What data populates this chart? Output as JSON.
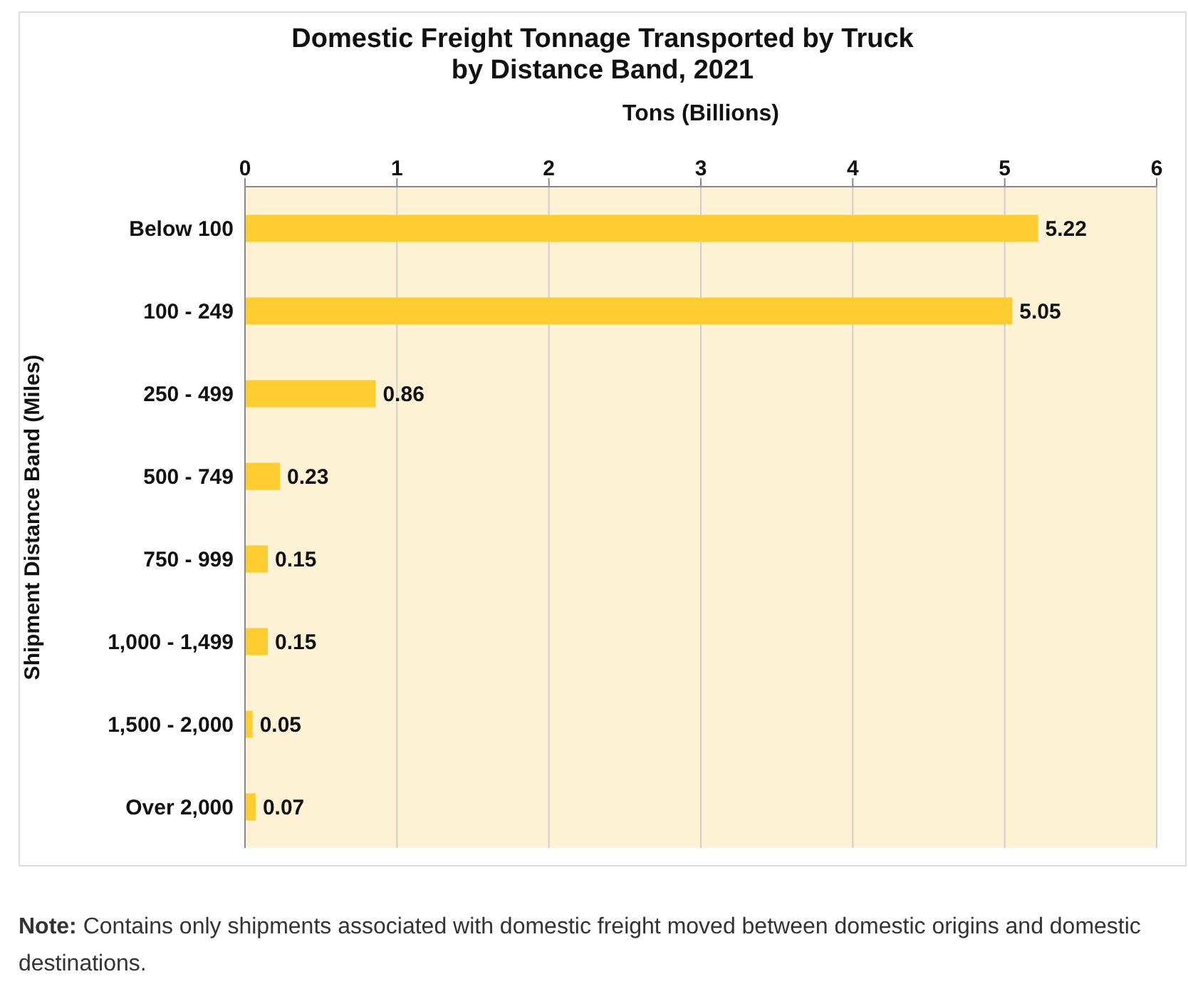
{
  "chart_data": {
    "type": "bar",
    "orientation": "horizontal",
    "title": "Domestic Freight Tonnage Transported by Truck\nby Distance Band, 2021",
    "xlabel": "Tons (Billions)",
    "ylabel": "Shipment Distance Band (Miles)",
    "categories": [
      "Below 100",
      "100 - 249",
      "250 - 499",
      "500 - 749",
      "750 - 999",
      "1,000 - 1,499",
      "1,500 - 2,000",
      "Over 2,000"
    ],
    "values": [
      5.22,
      5.05,
      0.86,
      0.23,
      0.15,
      0.15,
      0.05,
      0.07
    ],
    "color": "#fecd2f",
    "xlim": [
      0,
      6
    ],
    "xticks": [
      0,
      1,
      2,
      3,
      4,
      5,
      6
    ],
    "grid": "x",
    "data_labels": true,
    "annotations": [
      "Note: Contains only shipments associated with domestic freight moved between domestic origins and domestic destinations."
    ]
  }
}
